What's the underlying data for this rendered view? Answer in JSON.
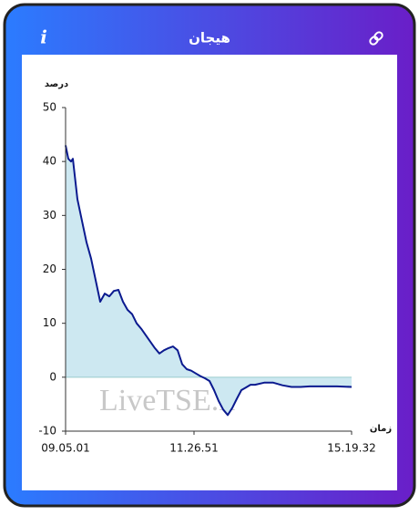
{
  "header": {
    "title": "هیجان",
    "info_icon": "i"
  },
  "chart_data": {
    "type": "line",
    "ylabel": "درصد",
    "xlabel": "زمان",
    "watermark": "LiveTSE.ir",
    "x": [
      0,
      3,
      6,
      8,
      13,
      18,
      23,
      28,
      33,
      38,
      43,
      48,
      53,
      58,
      63,
      68,
      73,
      78,
      83,
      88,
      93,
      98,
      103,
      108,
      113,
      118,
      123,
      128,
      133,
      138,
      143,
      148,
      153,
      158,
      163,
      168,
      173,
      178,
      183,
      188,
      193,
      198,
      203,
      208,
      218,
      228,
      238,
      248,
      258,
      268,
      278,
      288,
      298,
      314
    ],
    "series": [
      {
        "color": "#0b1a8f",
        "fill": "#cde8f1",
        "values": [
          43,
          40.5,
          40,
          40.5,
          33,
          29,
          25,
          22,
          18,
          14,
          15.5,
          15,
          16,
          16.2,
          14,
          12.5,
          11.7,
          10,
          9,
          7.8,
          6.6,
          5.4,
          4.4,
          5,
          5.4,
          5.7,
          5,
          2.4,
          1.5,
          1.2,
          0.7,
          0.2,
          -0.2,
          -0.7,
          -2.4,
          -4.4,
          -6,
          -7,
          -5.7,
          -4,
          -2.4,
          -1.9,
          -1.4,
          -1.4,
          -1,
          -1,
          -1.5,
          -1.8,
          -1.8,
          -1.7,
          -1.7,
          -1.7,
          -1.7,
          -1.8
        ]
      }
    ],
    "xlim": [
      0,
      314
    ],
    "xticks": [
      {
        "value": 0,
        "label": "09.05.01"
      },
      {
        "value": 141,
        "label": "11.26.51"
      },
      {
        "value": 314,
        "label": "15.19.32"
      }
    ],
    "ylim": [
      -10,
      50
    ],
    "yticks": [
      -10,
      0,
      10,
      20,
      30,
      40,
      50
    ],
    "grid": false
  }
}
